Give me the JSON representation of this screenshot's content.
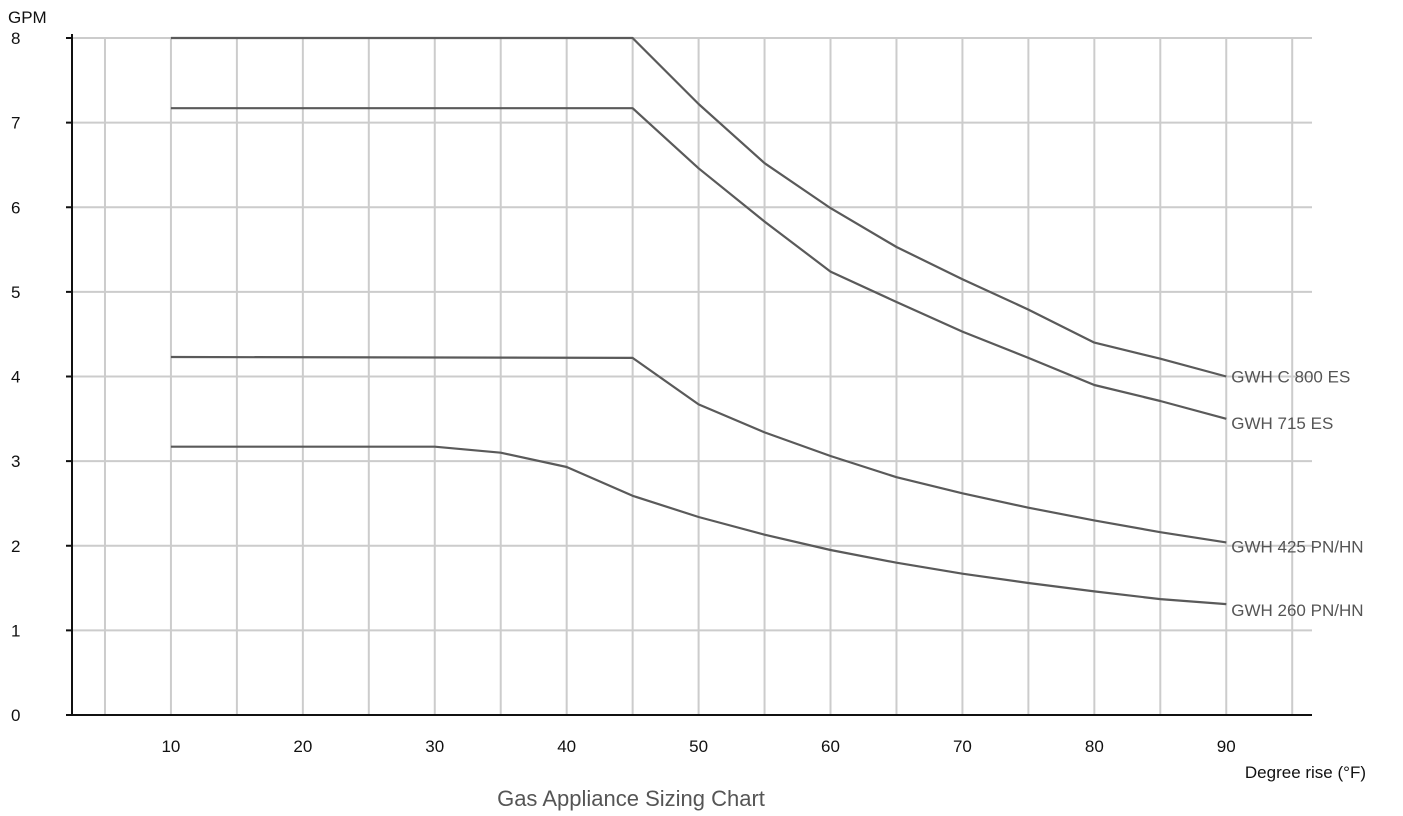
{
  "chart_data": {
    "type": "line",
    "title": "Gas Appliance Sizing Chart",
    "xlabel": "Degree rise (°F)",
    "ylabel": "GPM",
    "xlim": [
      2.5,
      96.5
    ],
    "ylim": [
      0,
      8
    ],
    "x_ticks": [
      10,
      20,
      30,
      40,
      50,
      60,
      70,
      80,
      90
    ],
    "y_ticks": [
      0,
      1,
      2,
      3,
      4,
      5,
      6,
      7,
      8
    ],
    "x_grid": [
      5,
      10,
      15,
      20,
      25,
      30,
      35,
      40,
      45,
      50,
      55,
      60,
      65,
      70,
      75,
      80,
      85,
      90,
      95
    ],
    "y_grid": [
      1,
      2,
      3,
      4,
      5,
      6,
      7,
      8
    ],
    "grid": true,
    "legend": "labels at line ends (right)",
    "line_color": "#5a5a5a",
    "grid_color": "#cccccc",
    "axis_color": "#111111",
    "series": [
      {
        "name": "GWH C 800 ES",
        "x": [
          10,
          45,
          50,
          55,
          60,
          65,
          70,
          75,
          80,
          85,
          90
        ],
        "y": [
          8.0,
          8.0,
          7.22,
          6.52,
          5.99,
          5.53,
          5.15,
          4.79,
          4.4,
          4.21,
          4.0
        ]
      },
      {
        "name": "GWH 715 ES",
        "x": [
          10,
          45,
          50,
          55,
          60,
          65,
          70,
          75,
          80,
          85,
          90
        ],
        "y": [
          7.17,
          7.17,
          6.46,
          5.83,
          5.24,
          4.88,
          4.53,
          4.22,
          3.9,
          3.71,
          3.5
        ]
      },
      {
        "name": "GWH 425 PN/HN",
        "x": [
          10,
          45,
          50,
          55,
          60,
          65,
          70,
          75,
          80,
          85,
          90
        ],
        "y": [
          4.23,
          4.22,
          3.67,
          3.34,
          3.06,
          2.81,
          2.62,
          2.45,
          2.3,
          2.16,
          2.04
        ]
      },
      {
        "name": "GWH 260 PN/HN",
        "x": [
          10,
          30,
          35,
          40,
          45,
          50,
          55,
          60,
          65,
          70,
          75,
          80,
          85,
          90
        ],
        "y": [
          3.17,
          3.17,
          3.1,
          2.93,
          2.59,
          2.34,
          2.13,
          1.95,
          1.8,
          1.67,
          1.56,
          1.46,
          1.37,
          1.31
        ]
      }
    ]
  }
}
